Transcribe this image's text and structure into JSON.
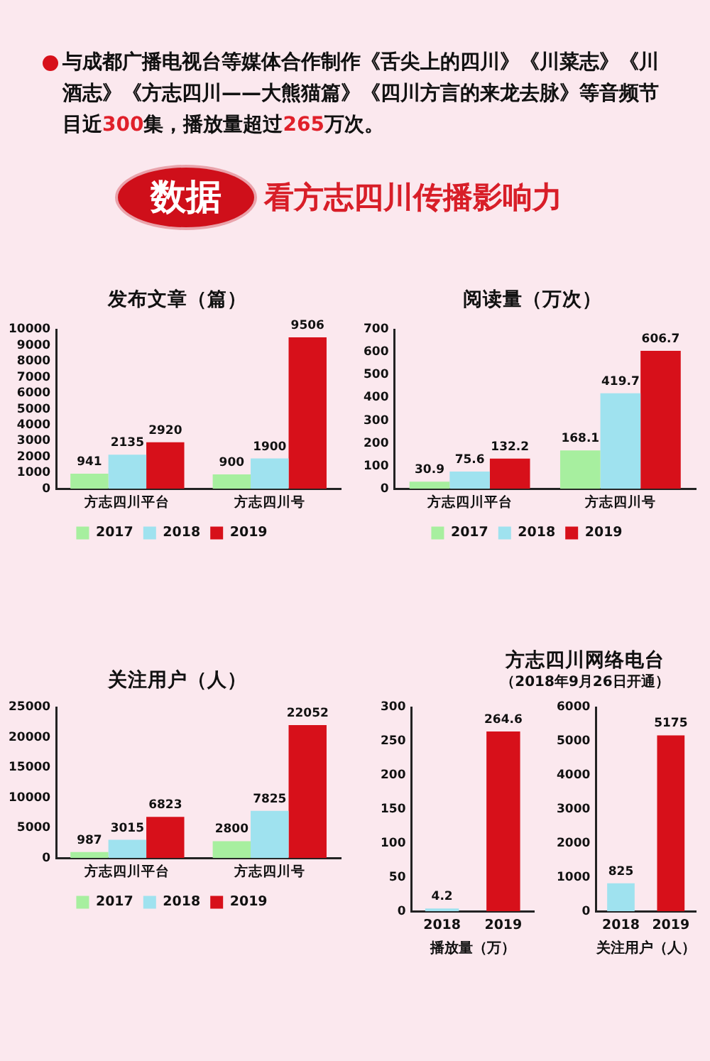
{
  "chart_data": [
    {
      "type": "other",
      "title": "数据",
      "subtitle": "看方志四川传播影响力",
      "annotations": [
        "与成都广播电视台等媒体合作制作《舌尖上的四川》《川菜志》《川酒志》《方志四川——大熊猫篇》《四川方言的来龙去脉》等音频节目近300集，播放量超过265万次。"
      ]
    },
    {
      "type": "bar",
      "title": "发布文章（篇）",
      "categories": [
        "方志四川平台",
        "方志四川号"
      ],
      "series": [
        {
          "name": "2017",
          "color": "#a7ef9f",
          "values": [
            941,
            900
          ]
        },
        {
          "name": "2018",
          "color": "#9fe2ef",
          "values": [
            2135,
            1900
          ]
        },
        {
          "name": "2019",
          "color": "#d7101a",
          "values": [
            2920,
            9506
          ]
        }
      ],
      "ylim": [
        0,
        10000
      ],
      "yticks": [
        0,
        1000,
        2000,
        3000,
        4000,
        5000,
        6000,
        7000,
        8000,
        9000,
        10000
      ],
      "data_labels": true,
      "legend": "bottom"
    },
    {
      "type": "bar",
      "title": "阅读量（万次）",
      "categories": [
        "方志四川平台",
        "方志四川号"
      ],
      "series": [
        {
          "name": "2017",
          "color": "#a7ef9f",
          "values": [
            30.9,
            168.1
          ]
        },
        {
          "name": "2018",
          "color": "#9fe2ef",
          "values": [
            75.6,
            419.7
          ]
        },
        {
          "name": "2019",
          "color": "#d7101a",
          "values": [
            132.2,
            606.7
          ]
        }
      ],
      "ylim": [
        0,
        700
      ],
      "yticks": [
        0,
        100,
        200,
        300,
        400,
        500,
        600,
        700
      ],
      "data_labels": true,
      "legend": "bottom"
    },
    {
      "type": "bar",
      "title": "关注用户（人）",
      "categories": [
        "方志四川平台",
        "方志四川号"
      ],
      "series": [
        {
          "name": "2017",
          "color": "#a7ef9f",
          "values": [
            987,
            2800
          ]
        },
        {
          "name": "2018",
          "color": "#9fe2ef",
          "values": [
            3015,
            7825
          ]
        },
        {
          "name": "2019",
          "color": "#d7101a",
          "values": [
            6823,
            22052
          ]
        }
      ],
      "ylim": [
        0,
        25000
      ],
      "yticks": [
        0,
        5000,
        10000,
        15000,
        20000,
        25000
      ],
      "data_labels": true,
      "legend": "bottom"
    },
    {
      "type": "bar",
      "title": "方志四川网络电台",
      "subtitle": "（2018年9月26日开通）",
      "xlabel": "播放量（万）",
      "categories": [
        "2018",
        "2019"
      ],
      "values": [
        4.2,
        264.6
      ],
      "colors": [
        "#9fe2ef",
        "#d7101a"
      ],
      "ylim": [
        0,
        300
      ],
      "yticks": [
        0,
        50,
        100,
        150,
        200,
        250,
        300
      ],
      "data_labels": true
    },
    {
      "type": "bar",
      "xlabel": "关注用户（人）",
      "categories": [
        "2018",
        "2019"
      ],
      "values": [
        825,
        5175
      ],
      "colors": [
        "#9fe2ef",
        "#d7101a"
      ],
      "ylim": [
        0,
        6000
      ],
      "yticks": [
        0,
        1000,
        2000,
        3000,
        4000,
        5000,
        6000
      ],
      "data_labels": true
    }
  ]
}
